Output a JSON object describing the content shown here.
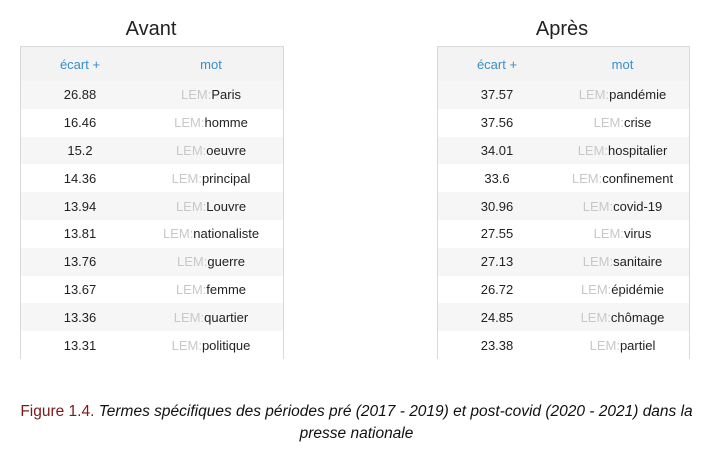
{
  "left": {
    "title": "Avant",
    "headers": {
      "score": "écart +",
      "word": "mot"
    },
    "prefix": "LEM:",
    "rows": [
      {
        "score": "26.88",
        "word": "Paris"
      },
      {
        "score": "16.46",
        "word": "homme"
      },
      {
        "score": "15.2",
        "word": "oeuvre"
      },
      {
        "score": "14.36",
        "word": "principal"
      },
      {
        "score": "13.94",
        "word": "Louvre"
      },
      {
        "score": "13.81",
        "word": "nationaliste"
      },
      {
        "score": "13.76",
        "word": "guerre"
      },
      {
        "score": "13.67",
        "word": "femme"
      },
      {
        "score": "13.36",
        "word": "quartier"
      },
      {
        "score": "13.31",
        "word": "politique"
      }
    ]
  },
  "right": {
    "title": "Après",
    "headers": {
      "score": "écart +",
      "word": "mot"
    },
    "prefix": "LEM:",
    "rows": [
      {
        "score": "37.57",
        "word": "pandémie"
      },
      {
        "score": "37.56",
        "word": "crise"
      },
      {
        "score": "34.01",
        "word": "hospitalier"
      },
      {
        "score": "33.6",
        "word": "confinement"
      },
      {
        "score": "30.96",
        "word": "covid-19"
      },
      {
        "score": "27.55",
        "word": "virus"
      },
      {
        "score": "27.13",
        "word": "sanitaire"
      },
      {
        "score": "26.72",
        "word": "épidémie"
      },
      {
        "score": "24.85",
        "word": "chômage"
      },
      {
        "score": "23.38",
        "word": "partiel"
      }
    ]
  },
  "caption": {
    "number": "Figure 1.4.",
    "text": "Termes spécifiques des périodes pré (2017 - 2019) et post-covid (2020 - 2021) dans la presse nationale"
  }
}
